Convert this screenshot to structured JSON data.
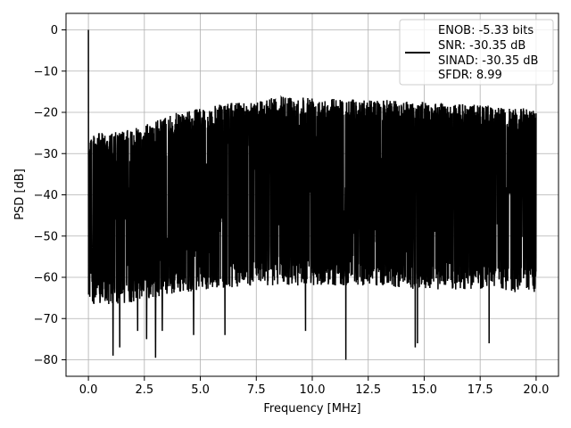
{
  "chart_data": {
    "type": "line",
    "title": "",
    "xlabel": "Frequency [MHz]",
    "ylabel": "PSD [dB]",
    "xlim": [
      -1.0,
      21.0
    ],
    "ylim": [
      -84.0,
      4.0
    ],
    "xticks": [
      0.0,
      2.5,
      5.0,
      7.5,
      10.0,
      12.5,
      15.0,
      17.5,
      20.0
    ],
    "xtick_labels": [
      "0.0",
      "2.5",
      "5.0",
      "7.5",
      "10.0",
      "12.5",
      "15.0",
      "17.5",
      "20.0"
    ],
    "yticks": [
      0,
      -10,
      -20,
      -30,
      -40,
      -50,
      -60,
      -70,
      -80
    ],
    "ytick_labels": [
      "0",
      "−10",
      "−20",
      "−30",
      "−40",
      "−50",
      "−60",
      "−70",
      "−80"
    ],
    "grid": true,
    "legend_position": "top-right",
    "series": [
      {
        "color": "#000000",
        "x_range": [
          0.0,
          20.0
        ],
        "peak": {
          "x": 0.0,
          "y": 0.0
        },
        "upper_envelope": {
          "x": [
            0.0,
            0.3,
            1.0,
            2.0,
            3.0,
            4.0,
            5.0,
            6.0,
            7.5,
            9.0,
            10.0,
            11.0,
            12.5,
            14.0,
            15.0,
            16.0,
            17.5,
            18.5,
            20.0
          ],
          "y": [
            -25,
            -25,
            -25,
            -24,
            -22,
            -20,
            -19,
            -18,
            -17,
            -16,
            -16,
            -16.5,
            -17,
            -17,
            -17.5,
            -18,
            -18,
            -19,
            -19
          ]
        },
        "lower_envelope": {
          "x": [
            0.0,
            0.5,
            1.0,
            2.0,
            3.0,
            5.0,
            7.5,
            10.0,
            12.5,
            15.0,
            17.5,
            20.0
          ],
          "y": [
            -66,
            -67,
            -67,
            -66,
            -65,
            -63,
            -62,
            -62,
            -62,
            -63,
            -63,
            -64
          ]
        },
        "dips": [
          {
            "x": 1.1,
            "y": -79
          },
          {
            "x": 1.4,
            "y": -77
          },
          {
            "x": 2.2,
            "y": -73
          },
          {
            "x": 2.6,
            "y": -75
          },
          {
            "x": 3.0,
            "y": -79.5
          },
          {
            "x": 3.3,
            "y": -73
          },
          {
            "x": 4.7,
            "y": -74
          },
          {
            "x": 6.1,
            "y": -74
          },
          {
            "x": 9.7,
            "y": -73
          },
          {
            "x": 11.5,
            "y": -80
          },
          {
            "x": 14.6,
            "y": -77
          },
          {
            "x": 14.7,
            "y": -76
          },
          {
            "x": 17.9,
            "y": -76
          }
        ]
      }
    ],
    "legend": {
      "lines": [
        "ENOB: -5.33 bits",
        "SNR: -30.35 dB",
        "SINAD: -30.35 dB",
        "SFDR: 8.99"
      ]
    }
  }
}
